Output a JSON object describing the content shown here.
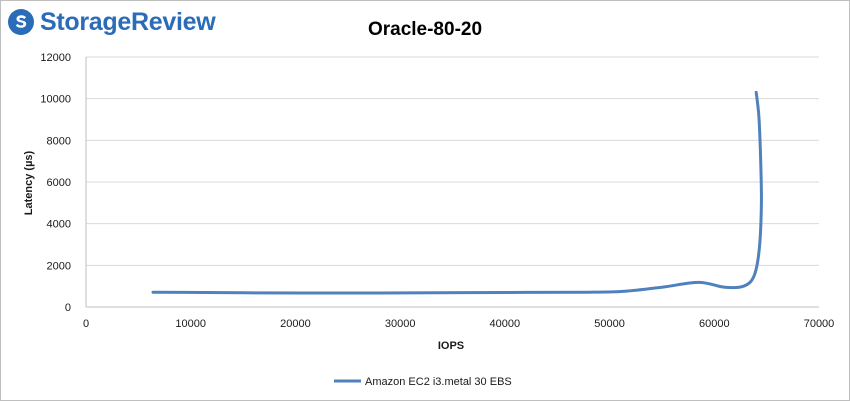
{
  "logo": {
    "text": "StorageReview",
    "icon": "storagereview-logo-icon",
    "color": "#2b6cb8"
  },
  "chart_data": {
    "type": "line",
    "title": "Oracle-80-20",
    "xlabel": "IOPS",
    "ylabel": "Latency (µs)",
    "xlim": [
      0,
      70000
    ],
    "ylim": [
      0,
      12000
    ],
    "xticks": [
      0,
      10000,
      20000,
      30000,
      40000,
      50000,
      60000,
      70000
    ],
    "yticks": [
      0,
      2000,
      4000,
      6000,
      8000,
      10000,
      12000
    ],
    "grid": "horizontal",
    "legend": "bottom-center",
    "series": [
      {
        "name": "Amazon EC2 i3.metal 30 EBS",
        "color": "#4f81bd",
        "x": [
          6400,
          9500,
          15000,
          25000,
          33500,
          42000,
          48000,
          51500,
          55000,
          58500,
          61000,
          62800,
          63800,
          64300,
          64500,
          64400,
          64250,
          64000
        ],
        "y": [
          710,
          700,
          680,
          670,
          680,
          700,
          710,
          760,
          950,
          1180,
          950,
          1000,
          1500,
          2800,
          5000,
          7500,
          9200,
          10300
        ]
      }
    ]
  }
}
